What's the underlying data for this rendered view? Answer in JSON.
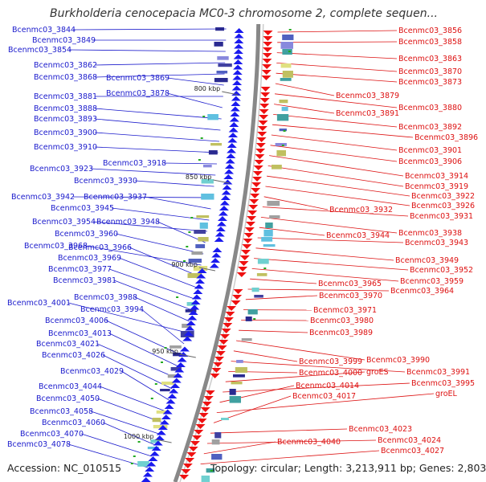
{
  "title": "Burkholderia cenocepacia MC0-3 chromosome 2, complete sequen...",
  "accession": "Accession: NC_010515",
  "topology": "Topology: circular; Length: 3,213,911 bp; Genes: 2,803",
  "colors": {
    "forward_label": "#1a1acc",
    "reverse_label": "#dd1111",
    "forward_arrow": "#1a1aee",
    "reverse_arrow": "#ee1111",
    "backbone": "#888888",
    "tick": "#666666"
  },
  "ticks": [
    "800 kbp",
    "850 kbp",
    "900 kbp",
    "950 kbp",
    "1000 kbp"
  ],
  "left_labels": [
    "Bcenmc03_3844",
    "Bcenmc03_3849",
    "Bcenmc03_3854",
    "Bcenmc03_3862",
    "Bcenmc03_3868",
    "Bcenmc03_3869",
    "Bcenmc03_3881",
    "Bcenmc03_3878",
    "Bcenmc03_3888",
    "Bcenmc03_3893",
    "Bcenmc03_3900",
    "Bcenmc03_3910",
    "Bcenmc03_3918",
    "Bcenmc03_3923",
    "Bcenmc03_3930",
    "Bcenmc03_3942",
    "Bcenmc03_3937",
    "Bcenmc03_3945",
    "Bcenmc03_3954",
    "Bcenmc03_3948",
    "Bcenmc03_3960",
    "Bcenmc03_3968",
    "Bcenmc03_3966",
    "Bcenmc03_3969",
    "Bcenmc03_3977",
    "Bcenmc03_3981",
    "Bcenmc03_3988",
    "Bcenmc03_4001",
    "Bcenmc03_3994",
    "Bcenmc03_4006",
    "Bcenmc03_4013",
    "Bcenmc03_4021",
    "Bcenmc03_4026",
    "Bcenmc03_4029",
    "Bcenmc03_4044",
    "Bcenmc03_4050",
    "Bcenmc03_4058",
    "Bcenmc03_4060",
    "Bcenmc03_4070",
    "Bcenmc03_4078"
  ],
  "right_labels": [
    "Bcenmc03_3856",
    "Bcenmc03_3858",
    "Bcenmc03_3863",
    "Bcenmc03_3870",
    "Bcenmc03_3873",
    "Bcenmc03_3879",
    "Bcenmc03_3880",
    "Bcenmc03_3891",
    "Bcenmc03_3892",
    "Bcenmc03_3896",
    "Bcenmc03_3901",
    "Bcenmc03_3906",
    "Bcenmc03_3914",
    "Bcenmc03_3919",
    "Bcenmc03_3922",
    "Bcenmc03_3926",
    "Bcenmc03_3932",
    "Bcenmc03_3931",
    "Bcenmc03_3938",
    "Bcenmc03_3944",
    "Bcenmc03_3943",
    "Bcenmc03_3949",
    "Bcenmc03_3952",
    "Bcenmc03_3959",
    "Bcenmc03_3965",
    "Bcenmc03_3964",
    "Bcenmc03_3970",
    "Bcenmc03_3971",
    "Bcenmc03_3980",
    "Bcenmc03_3989",
    "Bcenmc03_3990",
    "Bcenmc03_3999",
    "Bcenmc03_3991",
    "Bcenmc03_4000",
    "groES",
    "Bcenmc03_3995",
    "Bcenmc03_4014",
    "groEL",
    "Bcenmc03_4017",
    "Bcenmc03_4023",
    "Bcenmc03_4024",
    "Bcenmc03_4040",
    "Bcenmc03_4027"
  ]
}
